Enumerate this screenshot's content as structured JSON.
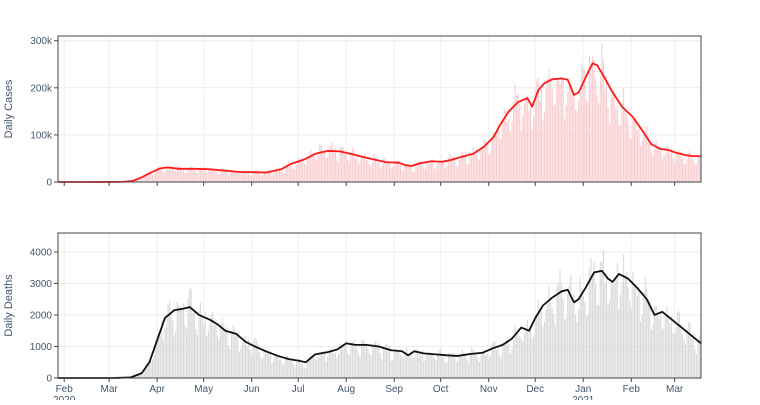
{
  "chart_data": [
    {
      "id": "cases",
      "type": "bar+line",
      "ylabel": "Daily Cases",
      "ylim": [
        0,
        310000
      ],
      "y_ticks": [
        0,
        100000,
        200000,
        300000
      ],
      "y_tick_labels": [
        "0",
        "100k",
        "200k",
        "300k"
      ],
      "x_range": [
        "2020-01-28",
        "2021-03-18"
      ],
      "x_tick_dates": [
        "2020-02-01",
        "2020-03-01",
        "2020-04-01",
        "2020-05-01",
        "2020-06-01",
        "2020-07-01",
        "2020-08-01",
        "2020-09-01",
        "2020-10-01",
        "2020-11-01",
        "2020-12-01",
        "2021-01-01",
        "2021-02-01",
        "2021-03-01"
      ],
      "x_tick_labels": [],
      "grid": true,
      "bar_color": "#f8c9cc",
      "line_color": "#ff1a1a",
      "series": [
        {
          "type": "line",
          "points": [
            [
              "2020-01-28",
              0
            ],
            [
              "2020-02-15",
              0
            ],
            [
              "2020-03-01",
              100
            ],
            [
              "2020-03-10",
              600
            ],
            [
              "2020-03-16",
              2000
            ],
            [
              "2020-03-22",
              10000
            ],
            [
              "2020-03-28",
              20000
            ],
            [
              "2020-04-03",
              29000
            ],
            [
              "2020-04-08",
              31000
            ],
            [
              "2020-04-15",
              28000
            ],
            [
              "2020-04-25",
              28000
            ],
            [
              "2020-05-05",
              27000
            ],
            [
              "2020-05-15",
              24000
            ],
            [
              "2020-05-25",
              21000
            ],
            [
              "2020-06-01",
              21000
            ],
            [
              "2020-06-10",
              20000
            ],
            [
              "2020-06-20",
              27000
            ],
            [
              "2020-06-26",
              38000
            ],
            [
              "2020-07-05",
              48000
            ],
            [
              "2020-07-12",
              60000
            ],
            [
              "2020-07-20",
              66000
            ],
            [
              "2020-07-28",
              65000
            ],
            [
              "2020-08-05",
              59000
            ],
            [
              "2020-08-12",
              53000
            ],
            [
              "2020-08-20",
              47000
            ],
            [
              "2020-08-27",
              42000
            ],
            [
              "2020-09-04",
              41000
            ],
            [
              "2020-09-08",
              36000
            ],
            [
              "2020-09-12",
              34000
            ],
            [
              "2020-09-18",
              40000
            ],
            [
              "2020-09-25",
              44000
            ],
            [
              "2020-10-02",
              43000
            ],
            [
              "2020-10-08",
              47000
            ],
            [
              "2020-10-15",
              54000
            ],
            [
              "2020-10-22",
              60000
            ],
            [
              "2020-10-29",
              75000
            ],
            [
              "2020-11-04",
              95000
            ],
            [
              "2020-11-09",
              125000
            ],
            [
              "2020-11-14",
              150000
            ],
            [
              "2020-11-20",
              170000
            ],
            [
              "2020-11-26",
              178000
            ],
            [
              "2020-11-29",
              160000
            ],
            [
              "2020-12-03",
              195000
            ],
            [
              "2020-12-07",
              210000
            ],
            [
              "2020-12-12",
              218000
            ],
            [
              "2020-12-18",
              220000
            ],
            [
              "2020-12-22",
              217000
            ],
            [
              "2020-12-26",
              185000
            ],
            [
              "2020-12-29",
              190000
            ],
            [
              "2021-01-03",
              225000
            ],
            [
              "2021-01-07",
              252000
            ],
            [
              "2021-01-10",
              248000
            ],
            [
              "2021-01-15",
              220000
            ],
            [
              "2021-01-20",
              190000
            ],
            [
              "2021-01-26",
              160000
            ],
            [
              "2021-02-02",
              138000
            ],
            [
              "2021-02-08",
              110000
            ],
            [
              "2021-02-14",
              80000
            ],
            [
              "2021-02-20",
              70000
            ],
            [
              "2021-02-25",
              68000
            ],
            [
              "2021-03-02",
              62000
            ],
            [
              "2021-03-08",
              57000
            ],
            [
              "2021-03-13",
              55000
            ],
            [
              "2021-03-18",
              55000
            ]
          ]
        }
      ]
    },
    {
      "id": "deaths",
      "type": "bar+line",
      "ylabel": "Daily Deaths",
      "ylim": [
        0,
        4600
      ],
      "y_ticks": [
        0,
        1000,
        2000,
        3000,
        4000
      ],
      "y_tick_labels": [
        "0",
        "1000",
        "2000",
        "3000",
        "4000"
      ],
      "x_range": [
        "2020-01-28",
        "2021-03-18"
      ],
      "x_tick_dates": [
        "2020-02-01",
        "2020-03-01",
        "2020-04-01",
        "2020-05-01",
        "2020-06-01",
        "2020-07-01",
        "2020-08-01",
        "2020-09-01",
        "2020-10-01",
        "2020-11-01",
        "2020-12-01",
        "2021-01-01",
        "2021-02-01",
        "2021-03-01"
      ],
      "x_tick_labels": [
        "Feb",
        "Mar",
        "Apr",
        "May",
        "Jun",
        "Jul",
        "Aug",
        "Sep",
        "Oct",
        "Nov",
        "Dec",
        "Jan",
        "Feb",
        "Mar"
      ],
      "year_labels": [
        {
          "date": "2020-02-01",
          "text": "2020"
        },
        {
          "date": "2021-01-01",
          "text": "2021"
        }
      ],
      "grid": true,
      "bar_color": "#d6d6d6",
      "line_color": "#111111",
      "series": [
        {
          "type": "line",
          "points": [
            [
              "2020-01-28",
              0
            ],
            [
              "2020-02-20",
              0
            ],
            [
              "2020-03-05",
              2
            ],
            [
              "2020-03-15",
              20
            ],
            [
              "2020-03-22",
              150
            ],
            [
              "2020-03-27",
              500
            ],
            [
              "2020-04-01",
              1200
            ],
            [
              "2020-04-06",
              1900
            ],
            [
              "2020-04-12",
              2150
            ],
            [
              "2020-04-18",
              2200
            ],
            [
              "2020-04-22",
              2250
            ],
            [
              "2020-04-28",
              2000
            ],
            [
              "2020-05-05",
              1850
            ],
            [
              "2020-05-10",
              1700
            ],
            [
              "2020-05-15",
              1500
            ],
            [
              "2020-05-22",
              1400
            ],
            [
              "2020-05-28",
              1150
            ],
            [
              "2020-06-03",
              1000
            ],
            [
              "2020-06-10",
              850
            ],
            [
              "2020-06-18",
              700
            ],
            [
              "2020-06-25",
              600
            ],
            [
              "2020-07-01",
              550
            ],
            [
              "2020-07-06",
              500
            ],
            [
              "2020-07-12",
              750
            ],
            [
              "2020-07-20",
              820
            ],
            [
              "2020-07-26",
              900
            ],
            [
              "2020-08-01",
              1100
            ],
            [
              "2020-08-07",
              1050
            ],
            [
              "2020-08-14",
              1050
            ],
            [
              "2020-08-22",
              1000
            ],
            [
              "2020-08-30",
              880
            ],
            [
              "2020-09-06",
              850
            ],
            [
              "2020-09-10",
              720
            ],
            [
              "2020-09-14",
              850
            ],
            [
              "2020-09-20",
              780
            ],
            [
              "2020-09-28",
              750
            ],
            [
              "2020-10-05",
              720
            ],
            [
              "2020-10-12",
              700
            ],
            [
              "2020-10-20",
              760
            ],
            [
              "2020-10-28",
              800
            ],
            [
              "2020-11-04",
              950
            ],
            [
              "2020-11-10",
              1050
            ],
            [
              "2020-11-16",
              1250
            ],
            [
              "2020-11-22",
              1600
            ],
            [
              "2020-11-27",
              1500
            ],
            [
              "2020-12-01",
              1900
            ],
            [
              "2020-12-06",
              2300
            ],
            [
              "2020-12-12",
              2550
            ],
            [
              "2020-12-18",
              2750
            ],
            [
              "2020-12-22",
              2800
            ],
            [
              "2020-12-26",
              2400
            ],
            [
              "2020-12-29",
              2500
            ],
            [
              "2021-01-03",
              2900
            ],
            [
              "2021-01-08",
              3350
            ],
            [
              "2021-01-13",
              3400
            ],
            [
              "2021-01-17",
              3150
            ],
            [
              "2021-01-20",
              3050
            ],
            [
              "2021-01-24",
              3300
            ],
            [
              "2021-01-30",
              3150
            ],
            [
              "2021-02-05",
              2850
            ],
            [
              "2021-02-11",
              2500
            ],
            [
              "2021-02-16",
              2000
            ],
            [
              "2021-02-21",
              2100
            ],
            [
              "2021-02-26",
              1900
            ],
            [
              "2021-03-03",
              1700
            ],
            [
              "2021-03-08",
              1500
            ],
            [
              "2021-03-13",
              1300
            ],
            [
              "2021-03-18",
              1100
            ]
          ]
        }
      ]
    }
  ]
}
